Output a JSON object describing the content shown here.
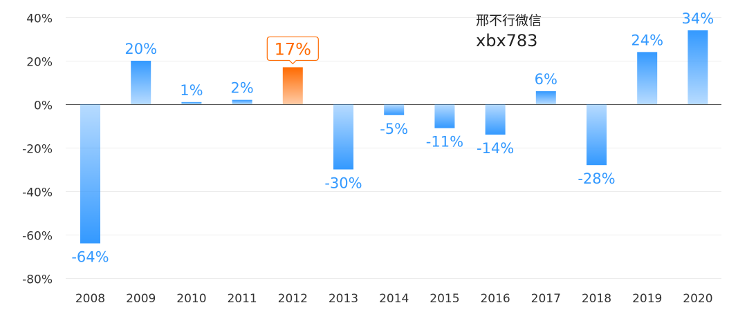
{
  "chart_data": {
    "type": "bar",
    "categories": [
      "2008",
      "2009",
      "2010",
      "2011",
      "2012",
      "2013",
      "2014",
      "2015",
      "2016",
      "2017",
      "2018",
      "2019",
      "2020"
    ],
    "values": [
      -64,
      20,
      1,
      2,
      17,
      -30,
      -5,
      -11,
      -14,
      6,
      -28,
      24,
      34
    ],
    "data_labels": [
      "-64%",
      "20%",
      "1%",
      "2%",
      "17%",
      "-30%",
      "-5%",
      "-11%",
      "-14%",
      "6%",
      "-28%",
      "24%",
      "34%"
    ],
    "y_tick_labels": [
      "40%",
      "20%",
      "0%",
      "-20%",
      "-40%",
      "-60%",
      "-80%"
    ],
    "y_ticks": [
      40,
      20,
      0,
      -20,
      -40,
      -60,
      -80
    ],
    "ylim": [
      -80,
      40
    ],
    "grid": true,
    "highlight_category": "2012",
    "colors": {
      "bar": "#3399ff",
      "highlight": "#ff6a00",
      "label": "#3399ff"
    },
    "title": "",
    "xlabel": "",
    "ylabel": ""
  },
  "watermark": {
    "line1": "邢不行微信",
    "line2": "xbx783"
  }
}
